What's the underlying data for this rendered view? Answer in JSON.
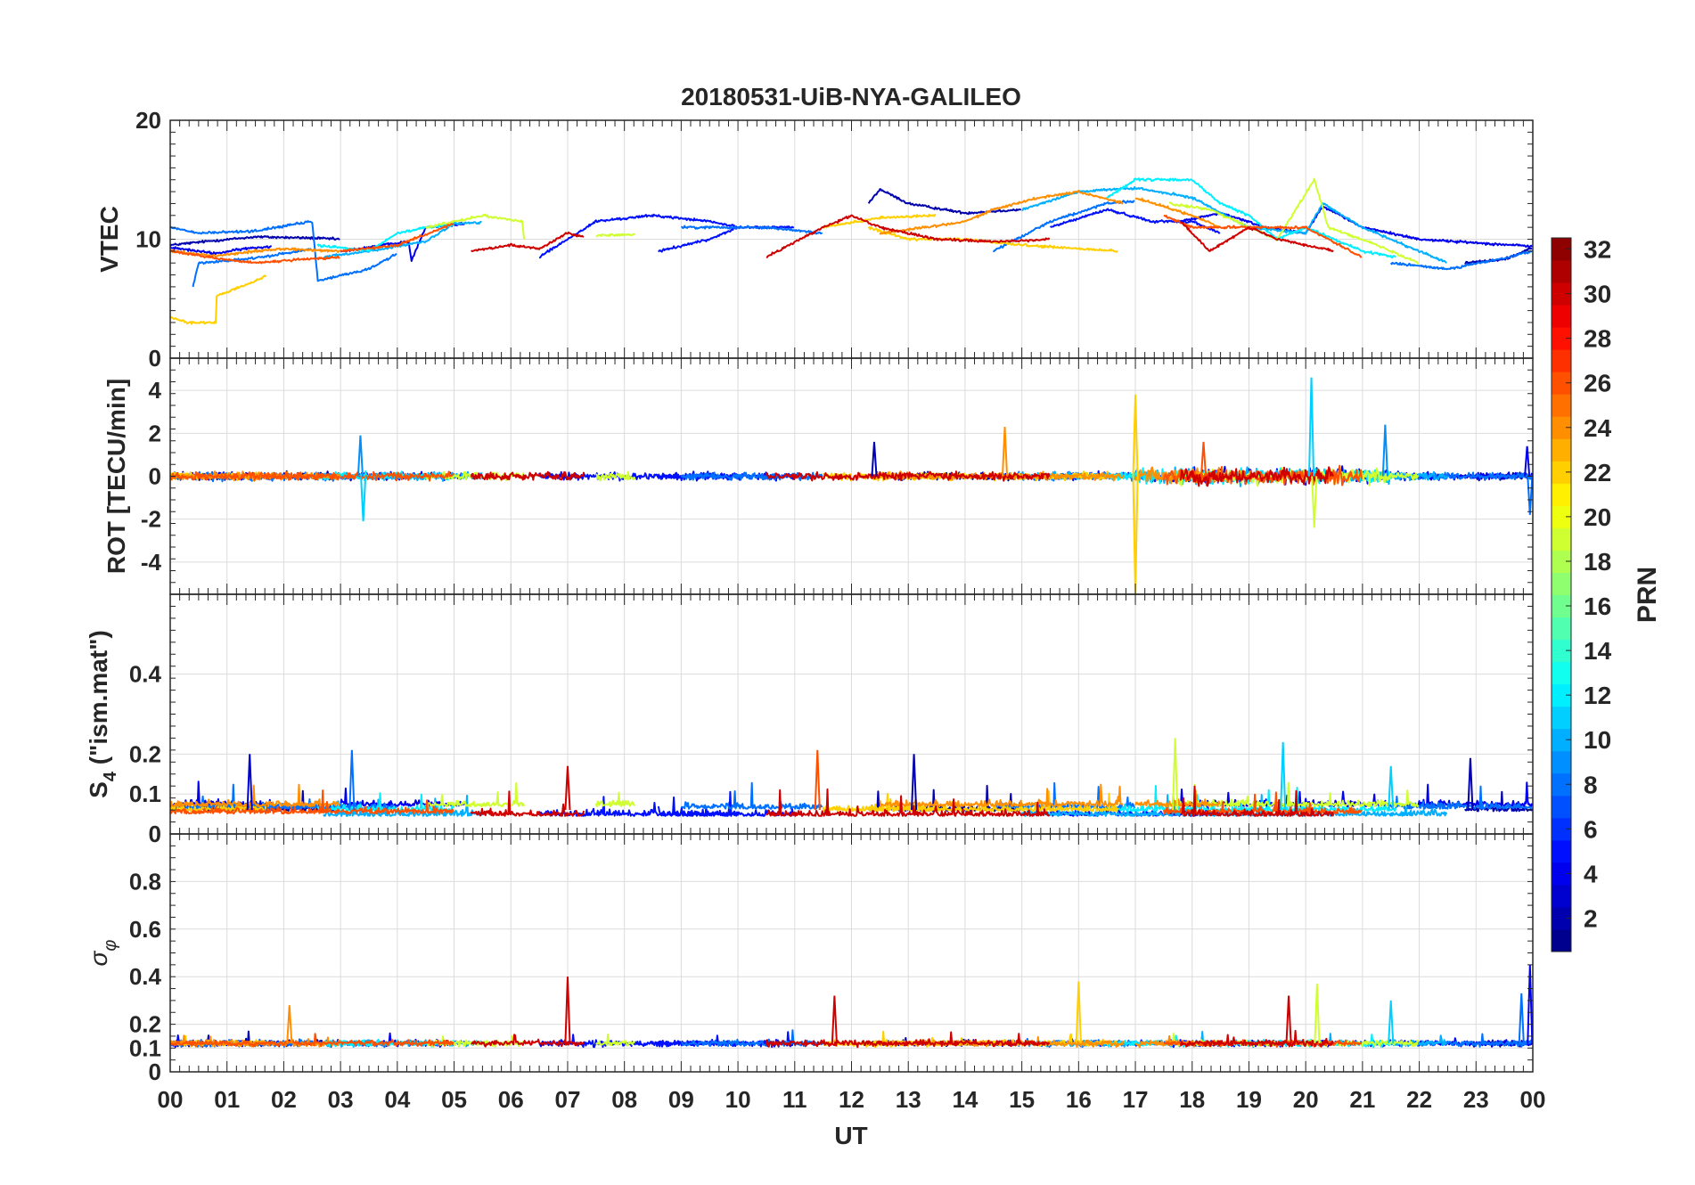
{
  "chart_data": {
    "type": "line",
    "title": "20180531-UiB-NYA-GALILEO",
    "xlabel": "UT",
    "xlim": [
      0,
      24
    ],
    "x_tick_labels": [
      "00",
      "01",
      "02",
      "03",
      "04",
      "05",
      "06",
      "07",
      "08",
      "09",
      "10",
      "11",
      "12",
      "13",
      "14",
      "15",
      "16",
      "17",
      "18",
      "19",
      "20",
      "21",
      "22",
      "23",
      "00"
    ],
    "grid": true,
    "colorbar": {
      "label": "PRN",
      "range": [
        1,
        32
      ],
      "ticks": [
        2,
        4,
        6,
        8,
        10,
        12,
        14,
        16,
        18,
        20,
        22,
        24,
        26,
        28,
        30,
        32
      ],
      "colormap": "jet",
      "placement": "right"
    },
    "panels": [
      {
        "id": "vtec",
        "ylabel": "VTEC",
        "ylim": [
          0,
          20
        ],
        "yticks": [
          0,
          10,
          20
        ],
        "ytick_labels": [
          "0",
          "10",
          "20"
        ]
      },
      {
        "id": "rot",
        "ylabel": "ROT [TECU/min]",
        "ylim": [
          -5.5,
          5.5
        ],
        "yticks": [
          -4,
          -2,
          0,
          2,
          4
        ],
        "ytick_labels": [
          "-4",
          "-2",
          "0",
          "2",
          "4"
        ]
      },
      {
        "id": "s4",
        "ylabel": "S",
        "ylabel_sub": "4",
        "ylabel_rest": " (\"ism.mat\")",
        "ylim": [
          0,
          0.6
        ],
        "yticks": [
          0,
          0.1,
          0.2,
          0.4
        ],
        "ytick_labels": [
          "0",
          "0.1",
          "0.2",
          "0.4"
        ]
      },
      {
        "id": "sigma",
        "ylabel": "σ",
        "ylabel_sub": "φ",
        "ylim": [
          0,
          1
        ],
        "yticks": [
          0,
          0.1,
          0.2,
          0.4,
          0.6,
          0.8
        ],
        "ytick_labels": [
          "0",
          "0.1",
          "0.2",
          "0.4",
          "0.6",
          "0.8"
        ]
      }
    ],
    "series": [
      {
        "prn": 2,
        "arcs": [
          [
            [
              0,
              9.5
            ],
            [
              0.6,
              9.8
            ],
            [
              1.5,
              10.2
            ],
            [
              2.5,
              10.1
            ],
            [
              3,
              10
            ]
          ],
          [
            [
              12.3,
              13
            ],
            [
              12.5,
              14.2
            ],
            [
              13,
              13
            ],
            [
              14,
              12.2
            ],
            [
              15,
              12.5
            ]
          ],
          [
            [
              22.8,
              8
            ],
            [
              23.5,
              8.3
            ],
            [
              24,
              9.3
            ]
          ]
        ]
      },
      {
        "prn": 4,
        "arcs": [
          [
            [
              0,
              9.3
            ],
            [
              0.8,
              8.8
            ],
            [
              1.3,
              9.2
            ],
            [
              1.8,
              9.4
            ]
          ],
          [
            [
              3,
              9
            ],
            [
              4.2,
              9.8
            ],
            [
              4.25,
              8.2
            ],
            [
              4.5,
              11
            ],
            [
              5.2,
              11.3
            ]
          ],
          [
            [
              17.8,
              11.5
            ],
            [
              18.5,
              12.2
            ],
            [
              19.3,
              11
            ],
            [
              20,
              10.5
            ],
            [
              20.3,
              12.8
            ],
            [
              21,
              11
            ],
            [
              22,
              10
            ],
            [
              24,
              9.4
            ]
          ]
        ]
      },
      {
        "prn": 5,
        "arcs": [
          [
            [
              6.5,
              8.5
            ],
            [
              7.5,
              11.5
            ],
            [
              8.5,
              12
            ],
            [
              9.5,
              11.5
            ],
            [
              10,
              11
            ]
          ],
          [
            [
              8.6,
              9
            ],
            [
              9.5,
              10
            ],
            [
              10,
              11
            ],
            [
              11,
              11
            ]
          ],
          [
            [
              15.5,
              11
            ],
            [
              16.5,
              12.5
            ],
            [
              17.3,
              11.5
            ],
            [
              18,
              11.5
            ],
            [
              18.5,
              10.5
            ]
          ]
        ]
      },
      {
        "prn": 8,
        "arcs": [
          [
            [
              0,
              11
            ],
            [
              0.5,
              10.5
            ],
            [
              1.5,
              10.7
            ],
            [
              2.5,
              11.5
            ],
            [
              2.6,
              6.5
            ],
            [
              3.5,
              7.5
            ],
            [
              4,
              8.8
            ]
          ],
          [
            [
              0.4,
              6
            ],
            [
              0.5,
              8
            ],
            [
              1.5,
              8.4
            ],
            [
              2.5,
              9.2
            ]
          ],
          [
            [
              9,
              11
            ],
            [
              10.5,
              11
            ],
            [
              11.5,
              10.5
            ]
          ],
          [
            [
              14.5,
              9
            ],
            [
              15.5,
              11.5
            ],
            [
              16.5,
              13
            ],
            [
              17,
              13.2
            ]
          ],
          [
            [
              21.5,
              8
            ],
            [
              22.5,
              7.5
            ],
            [
              23.5,
              8.4
            ],
            [
              24,
              9
            ]
          ]
        ]
      },
      {
        "prn": 10,
        "arcs": [
          [
            [
              2.7,
              8.5
            ],
            [
              3.5,
              9
            ],
            [
              4.5,
              9.8
            ],
            [
              5,
              11.3
            ],
            [
              5.5,
              11.4
            ]
          ],
          [
            [
              15,
              12.5
            ],
            [
              16,
              14
            ],
            [
              17,
              14.3
            ],
            [
              18,
              13.5
            ],
            [
              19,
              11
            ],
            [
              20,
              10.5
            ],
            [
              20.3,
              13
            ],
            [
              21,
              11
            ],
            [
              22,
              9
            ],
            [
              22.5,
              8
            ]
          ]
        ]
      },
      {
        "prn": 12,
        "arcs": [
          [
            [
              2.6,
              9.5
            ],
            [
              3.5,
              9
            ],
            [
              4,
              10.5
            ],
            [
              4.5,
              11
            ],
            [
              5,
              11.2
            ]
          ],
          [
            [
              16.5,
              13.5
            ],
            [
              17,
              15
            ],
            [
              18,
              15
            ],
            [
              18.5,
              13
            ],
            [
              19,
              12
            ],
            [
              19.5,
              10
            ],
            [
              20,
              11
            ],
            [
              21,
              9
            ],
            [
              21.6,
              8.5
            ]
          ]
        ]
      },
      {
        "prn": 19,
        "arcs": [
          [
            [
              4.5,
              11
            ],
            [
              5,
              11.5
            ],
            [
              5.5,
              12
            ],
            [
              6.2,
              11.5
            ],
            [
              6.25,
              9.2
            ]
          ],
          [
            [
              7.5,
              10.3
            ],
            [
              8.2,
              10.4
            ]
          ],
          [
            [
              17.6,
              13
            ],
            [
              18.3,
              12.5
            ],
            [
              19.5,
              10
            ],
            [
              20.15,
              15
            ],
            [
              20.4,
              11
            ],
            [
              21,
              10
            ],
            [
              22,
              8
            ]
          ]
        ]
      },
      {
        "prn": 22,
        "arcs": [
          [
            [
              0,
              3.5
            ],
            [
              0.3,
              3
            ],
            [
              0.8,
              3
            ],
            [
              0.82,
              5.2
            ],
            [
              1.5,
              6.5
            ],
            [
              1.7,
              7
            ]
          ],
          [
            [
              12.3,
              11
            ],
            [
              13,
              10
            ],
            [
              14,
              10
            ],
            [
              15,
              9.5
            ],
            [
              16,
              9.2
            ],
            [
              16.7,
              9
            ]
          ],
          [
            [
              11.5,
              11
            ],
            [
              12.5,
              11.8
            ],
            [
              13.5,
              12
            ]
          ]
        ]
      },
      {
        "prn": 24,
        "arcs": [
          [
            [
              0,
              9
            ],
            [
              0.8,
              8.6
            ],
            [
              1.5,
              9
            ],
            [
              2,
              9.2
            ],
            [
              3,
              9
            ]
          ],
          [
            [
              12.5,
              10.5
            ],
            [
              13.3,
              11
            ],
            [
              14,
              11.5
            ],
            [
              14.5,
              12.5
            ],
            [
              15.3,
              13.5
            ],
            [
              16,
              14
            ],
            [
              16.8,
              13
            ]
          ],
          [
            [
              17,
              13.5
            ],
            [
              18,
              12
            ],
            [
              18.5,
              11
            ]
          ]
        ]
      },
      {
        "prn": 26,
        "arcs": [
          [
            [
              0,
              9
            ],
            [
              0.8,
              8.4
            ],
            [
              1.5,
              8
            ],
            [
              2,
              8.2
            ],
            [
              3,
              8.5
            ]
          ],
          [
            [
              3,
              9
            ],
            [
              4,
              9.5
            ],
            [
              5,
              11.3
            ]
          ],
          [
            [
              17.5,
              12
            ],
            [
              18,
              11
            ],
            [
              19,
              11
            ],
            [
              20,
              11
            ],
            [
              21,
              8.5
            ]
          ]
        ]
      },
      {
        "prn": 30,
        "arcs": [
          [
            [
              5.3,
              9
            ],
            [
              6,
              9.5
            ],
            [
              6.5,
              9.2
            ],
            [
              7,
              10.5
            ],
            [
              7.3,
              10.2
            ]
          ],
          [
            [
              10.5,
              8.5
            ],
            [
              11.5,
              11
            ],
            [
              12,
              12
            ],
            [
              12.5,
              11
            ],
            [
              13.5,
              10
            ],
            [
              14.5,
              9.8
            ],
            [
              15.5,
              10
            ]
          ],
          [
            [
              17.8,
              11.5
            ],
            [
              18.3,
              9
            ],
            [
              19,
              11
            ],
            [
              19.5,
              10
            ],
            [
              20,
              9.5
            ],
            [
              20.5,
              9
            ]
          ]
        ]
      }
    ],
    "spikes": {
      "rot": [
        [
          17.0,
          -5.5,
          22
        ],
        [
          17.0,
          3.8,
          22
        ],
        [
          20.1,
          4.6,
          11
        ],
        [
          20.15,
          -2.4,
          19
        ],
        [
          14.7,
          2.3,
          24
        ],
        [
          3.4,
          -2.1,
          11
        ],
        [
          3.35,
          1.9,
          9
        ],
        [
          21.4,
          2.4,
          9
        ],
        [
          23.9,
          1.4,
          4
        ],
        [
          23.95,
          -1.8,
          8
        ],
        [
          12.4,
          1.6,
          2
        ],
        [
          18.2,
          1.6,
          26
        ]
      ],
      "s4": [
        [
          1.4,
          0.2,
          3
        ],
        [
          3.2,
          0.21,
          8
        ],
        [
          7.0,
          0.17,
          30
        ],
        [
          11.4,
          0.21,
          26
        ],
        [
          13.1,
          0.2,
          2
        ],
        [
          17.7,
          0.24,
          19
        ],
        [
          19.6,
          0.23,
          11
        ],
        [
          22.9,
          0.19,
          2
        ],
        [
          21.5,
          0.17,
          11
        ]
      ],
      "sigma": [
        [
          7.0,
          0.4,
          30
        ],
        [
          16.0,
          0.38,
          22
        ],
        [
          11.7,
          0.32,
          30
        ],
        [
          2.1,
          0.28,
          24
        ],
        [
          23.95,
          0.45,
          4
        ],
        [
          20.2,
          0.37,
          19
        ],
        [
          23.8,
          0.33,
          8
        ],
        [
          19.7,
          0.32,
          30
        ],
        [
          21.5,
          0.3,
          11
        ]
      ]
    }
  }
}
